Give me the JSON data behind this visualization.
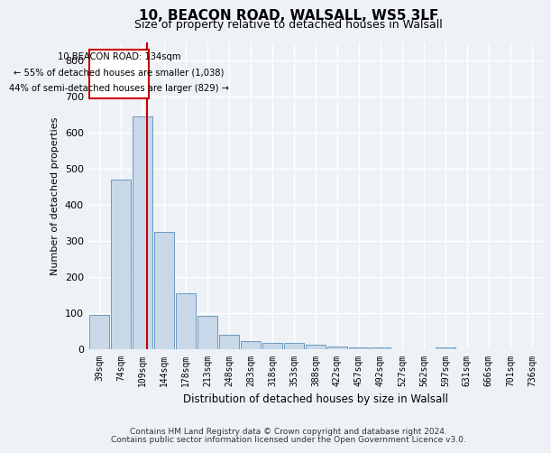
{
  "title_line1": "10, BEACON ROAD, WALSALL, WS5 3LF",
  "title_line2": "Size of property relative to detached houses in Walsall",
  "xlabel": "Distribution of detached houses by size in Walsall",
  "ylabel": "Number of detached properties",
  "footer_line1": "Contains HM Land Registry data © Crown copyright and database right 2024.",
  "footer_line2": "Contains public sector information licensed under the Open Government Licence v3.0.",
  "annotation_line1": "10 BEACON ROAD: 134sqm",
  "annotation_line2": "← 55% of detached houses are smaller (1,038)",
  "annotation_line3": "44% of semi-detached houses are larger (829) →",
  "bar_color": "#c8d8e8",
  "bar_edge_color": "#5b8db8",
  "ref_line_color": "#cc0000",
  "categories": [
    "39sqm",
    "74sqm",
    "109sqm",
    "144sqm",
    "178sqm",
    "213sqm",
    "248sqm",
    "283sqm",
    "318sqm",
    "353sqm",
    "388sqm",
    "422sqm",
    "457sqm",
    "492sqm",
    "527sqm",
    "562sqm",
    "597sqm",
    "631sqm",
    "666sqm",
    "701sqm",
    "736sqm"
  ],
  "values": [
    95,
    470,
    645,
    325,
    155,
    93,
    40,
    22,
    18,
    17,
    13,
    8,
    5,
    4,
    1,
    0,
    6,
    0,
    0,
    0,
    0
  ],
  "ylim": [
    0,
    850
  ],
  "yticks": [
    0,
    100,
    200,
    300,
    400,
    500,
    600,
    700,
    800
  ],
  "background_color": "#eef2f7",
  "grid_color": "#ffffff",
  "title_fontsize": 11,
  "subtitle_fontsize": 9,
  "footer_fontsize": 6.5
}
